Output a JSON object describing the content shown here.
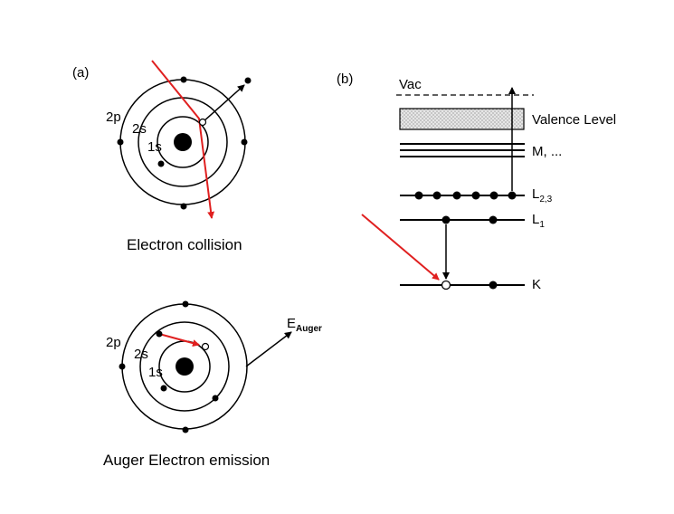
{
  "panel_a": {
    "label": "(a)",
    "collision": {
      "shells": [
        "2p",
        "2s",
        "1s"
      ],
      "caption": "Electron collision"
    },
    "emission": {
      "shells": [
        "2p",
        "2s",
        "1s"
      ],
      "energy_label_main": "E",
      "energy_label_sub": "Auger",
      "caption": "Auger Electron emission"
    }
  },
  "panel_b": {
    "label": "(b)",
    "vac": "Vac",
    "valence": "Valence Level",
    "m_shell": "M, ...",
    "l23_main": "L",
    "l23_sub": "2,3",
    "l1_main": "L",
    "l1_sub": "1",
    "k": "K"
  },
  "colors": {
    "line": "#000000",
    "incident": "#e02020",
    "valence_fill": "#dcdcdc"
  }
}
